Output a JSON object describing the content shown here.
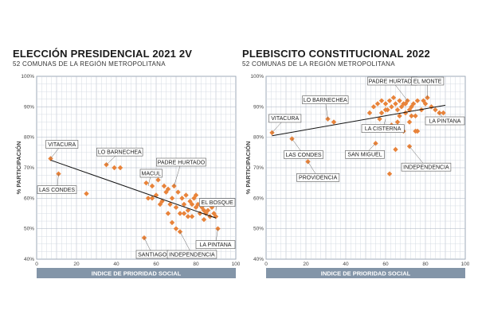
{
  "chart_data": [
    {
      "type": "scatter",
      "title": "ELECCIÓN PRESIDENCIAL 2021 2V",
      "subtitle": "52 COMUNAS DE LA REGIÓN METROPOLITANA",
      "xlabel": "INDICE DE PRIORIDAD SOCIAL",
      "ylabel": "% PARTICIPACIÓN",
      "xlim": [
        0,
        100
      ],
      "ylim": [
        40,
        100
      ],
      "xticks": [
        "0",
        "20",
        "40",
        "60",
        "80",
        "100"
      ],
      "yticks": [
        "40%",
        "50%",
        "60%",
        "70%",
        "80%",
        "90%",
        "100%"
      ],
      "grid": true,
      "marker_color": "#e8833a",
      "trendline": {
        "x": [
          7,
          90
        ],
        "y": [
          72.5,
          53.5
        ]
      },
      "points": [
        {
          "x": 7,
          "y": 73
        },
        {
          "x": 11,
          "y": 68
        },
        {
          "x": 25,
          "y": 61.5
        },
        {
          "x": 35,
          "y": 71
        },
        {
          "x": 39,
          "y": 70
        },
        {
          "x": 42,
          "y": 70
        },
        {
          "x": 55,
          "y": 65
        },
        {
          "x": 56,
          "y": 60
        },
        {
          "x": 58,
          "y": 64
        },
        {
          "x": 60,
          "y": 61
        },
        {
          "x": 61,
          "y": 66
        },
        {
          "x": 62,
          "y": 58
        },
        {
          "x": 64,
          "y": 64
        },
        {
          "x": 65,
          "y": 62
        },
        {
          "x": 66,
          "y": 63
        },
        {
          "x": 67,
          "y": 58
        },
        {
          "x": 68,
          "y": 60
        },
        {
          "x": 69,
          "y": 64
        },
        {
          "x": 70,
          "y": 57
        },
        {
          "x": 71,
          "y": 62
        },
        {
          "x": 72,
          "y": 55
        },
        {
          "x": 73,
          "y": 60
        },
        {
          "x": 74,
          "y": 58
        },
        {
          "x": 75,
          "y": 61
        },
        {
          "x": 76,
          "y": 56
        },
        {
          "x": 77,
          "y": 59
        },
        {
          "x": 78,
          "y": 54
        },
        {
          "x": 79,
          "y": 60
        },
        {
          "x": 80,
          "y": 57
        },
        {
          "x": 81,
          "y": 58
        },
        {
          "x": 82,
          "y": 55
        },
        {
          "x": 83,
          "y": 57
        },
        {
          "x": 84,
          "y": 53
        },
        {
          "x": 85,
          "y": 55
        },
        {
          "x": 86,
          "y": 56
        },
        {
          "x": 87,
          "y": 54
        },
        {
          "x": 88,
          "y": 57
        },
        {
          "x": 89,
          "y": 55
        },
        {
          "x": 90,
          "y": 54
        },
        {
          "x": 91,
          "y": 50
        },
        {
          "x": 54,
          "y": 47
        },
        {
          "x": 68,
          "y": 52
        },
        {
          "x": 70,
          "y": 50
        },
        {
          "x": 72,
          "y": 49
        },
        {
          "x": 66,
          "y": 55
        },
        {
          "x": 74,
          "y": 55
        },
        {
          "x": 63,
          "y": 59
        },
        {
          "x": 58,
          "y": 60
        },
        {
          "x": 78,
          "y": 58
        },
        {
          "x": 80,
          "y": 61
        },
        {
          "x": 76,
          "y": 54
        },
        {
          "x": 84,
          "y": 56
        }
      ],
      "annotations": [
        {
          "label": "VITACURA",
          "x": 7,
          "y": 73
        },
        {
          "label": "LAS CONDES",
          "x": 11,
          "y": 68
        },
        {
          "label": "LO BARNECHEA",
          "x": 35,
          "y": 71
        },
        {
          "label": "MACUL",
          "x": 56,
          "y": 64
        },
        {
          "label": "PADRE HURTADO",
          "x": 69,
          "y": 64
        },
        {
          "label": "EL BOSQUE",
          "x": 90,
          "y": 56
        },
        {
          "label": "SANTIAGO",
          "x": 54,
          "y": 47
        },
        {
          "label": "INDEPENDENCIA",
          "x": 72,
          "y": 49
        },
        {
          "label": "LA PINTANA",
          "x": 91,
          "y": 50
        }
      ]
    },
    {
      "type": "scatter",
      "title": "PLEBISCITO CONSTITUCIONAL 2022",
      "subtitle": "52 COMUNAS DE LA REGIÓN METROPOLITANA",
      "xlabel": "INDICE DE PRIORIDAD SOCIAL",
      "ylabel": "% PARTICIPACIÓN",
      "xlim": [
        0,
        100
      ],
      "ylim": [
        40,
        100
      ],
      "xticks": [
        "0",
        "20",
        "40",
        "60",
        "80",
        "100"
      ],
      "yticks": [
        "40%",
        "50%",
        "60%",
        "70%",
        "80%",
        "90%",
        "100%"
      ],
      "grid": true,
      "marker_color": "#e8833a",
      "trendline": {
        "x": [
          3,
          90
        ],
        "y": [
          80.5,
          90.5
        ]
      },
      "points": [
        {
          "x": 3,
          "y": 81.5
        },
        {
          "x": 13,
          "y": 79.5
        },
        {
          "x": 21,
          "y": 72
        },
        {
          "x": 31,
          "y": 86
        },
        {
          "x": 34,
          "y": 85
        },
        {
          "x": 52,
          "y": 88
        },
        {
          "x": 54,
          "y": 90
        },
        {
          "x": 56,
          "y": 91
        },
        {
          "x": 58,
          "y": 92
        },
        {
          "x": 60,
          "y": 91
        },
        {
          "x": 61,
          "y": 89
        },
        {
          "x": 62,
          "y": 92
        },
        {
          "x": 63,
          "y": 90
        },
        {
          "x": 64,
          "y": 93
        },
        {
          "x": 65,
          "y": 91
        },
        {
          "x": 66,
          "y": 89
        },
        {
          "x": 67,
          "y": 92
        },
        {
          "x": 68,
          "y": 90
        },
        {
          "x": 69,
          "y": 91
        },
        {
          "x": 70,
          "y": 88
        },
        {
          "x": 71,
          "y": 92
        },
        {
          "x": 72,
          "y": 89
        },
        {
          "x": 73,
          "y": 90
        },
        {
          "x": 74,
          "y": 91
        },
        {
          "x": 75,
          "y": 87
        },
        {
          "x": 76,
          "y": 92
        },
        {
          "x": 78,
          "y": 89
        },
        {
          "x": 79,
          "y": 92
        },
        {
          "x": 80,
          "y": 91
        },
        {
          "x": 81,
          "y": 93
        },
        {
          "x": 85,
          "y": 89
        },
        {
          "x": 87,
          "y": 88
        },
        {
          "x": 89,
          "y": 88
        },
        {
          "x": 57,
          "y": 86
        },
        {
          "x": 60,
          "y": 83
        },
        {
          "x": 63,
          "y": 84
        },
        {
          "x": 66,
          "y": 85
        },
        {
          "x": 69,
          "y": 82
        },
        {
          "x": 72,
          "y": 85
        },
        {
          "x": 75,
          "y": 82
        },
        {
          "x": 55,
          "y": 78
        },
        {
          "x": 62,
          "y": 68
        },
        {
          "x": 65,
          "y": 76
        },
        {
          "x": 72,
          "y": 77
        },
        {
          "x": 76,
          "y": 82
        },
        {
          "x": 58,
          "y": 88
        },
        {
          "x": 67,
          "y": 87
        },
        {
          "x": 73,
          "y": 87
        },
        {
          "x": 81,
          "y": 86
        },
        {
          "x": 83,
          "y": 90
        },
        {
          "x": 60,
          "y": 89
        },
        {
          "x": 70,
          "y": 91
        }
      ],
      "annotations": [
        {
          "label": "VITACURA",
          "x": 3,
          "y": 81.5
        },
        {
          "label": "LAS CONDES",
          "x": 13,
          "y": 79.5
        },
        {
          "label": "LO BARNECHEA",
          "x": 31,
          "y": 86
        },
        {
          "label": "PROVIDENCIA",
          "x": 21,
          "y": 72
        },
        {
          "label": "PADRE HURTADO",
          "x": 71,
          "y": 92
        },
        {
          "label": "EL MONTE",
          "x": 81,
          "y": 93
        },
        {
          "label": "LA CISTERNA",
          "x": 60,
          "y": 86
        },
        {
          "label": "LA PINTANA",
          "x": 87,
          "y": 88
        },
        {
          "label": "SAN MIGUEL",
          "x": 55,
          "y": 78
        },
        {
          "label": "INDEPENDENCIA",
          "x": 72,
          "y": 77
        }
      ]
    }
  ]
}
